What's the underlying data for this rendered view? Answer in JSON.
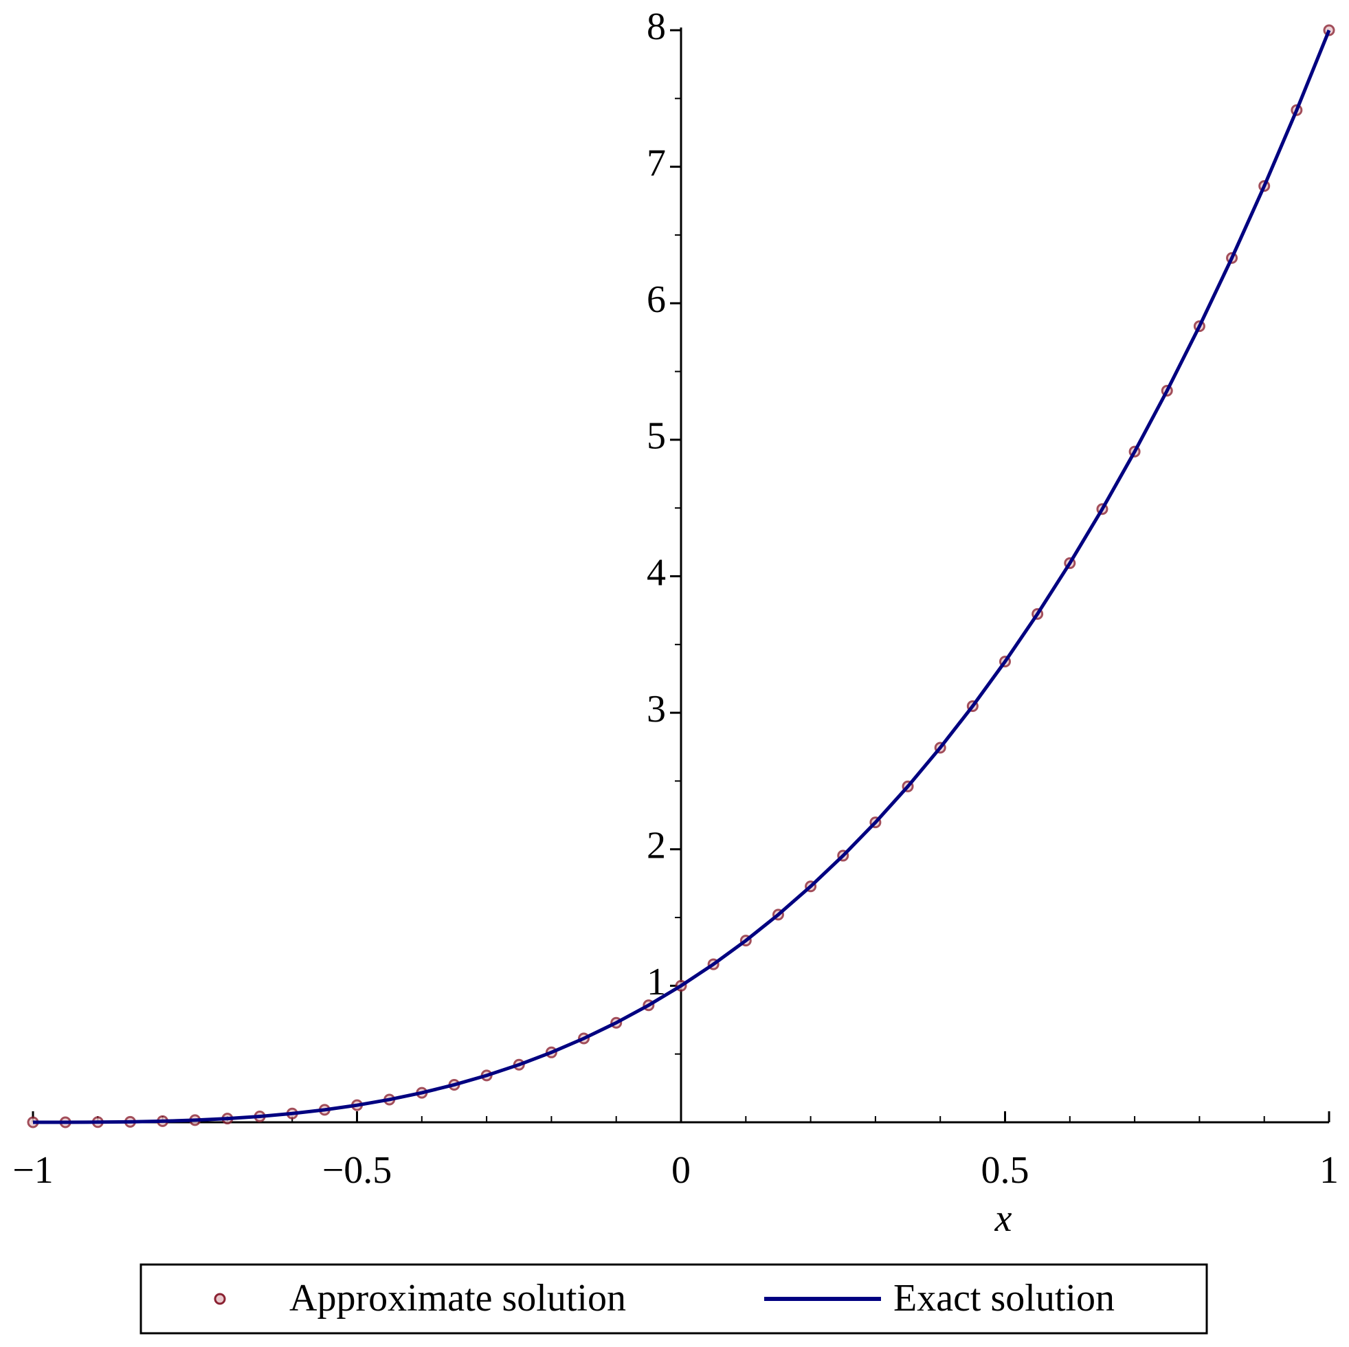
{
  "chart_data": {
    "type": "line",
    "x_label": "x",
    "xlim": [
      -1,
      1
    ],
    "ylim": [
      0,
      8
    ],
    "xticks": [
      {
        "value": -1,
        "label": "−1"
      },
      {
        "value": -0.5,
        "label": "−0.5"
      },
      0,
      0.5,
      1
    ],
    "yticks": [
      1,
      2,
      3,
      4,
      5,
      6,
      7,
      8
    ],
    "xminor_ticks": [
      -0.9,
      -0.8,
      -0.7,
      -0.6,
      -0.4,
      -0.3,
      -0.2,
      -0.1,
      0.1,
      0.2,
      0.3,
      0.4,
      0.6,
      0.7,
      0.8,
      0.9
    ],
    "yminor_ticks": [
      0.5,
      1.5,
      2.5,
      3.5,
      4.5,
      5.5,
      6.5,
      7.5
    ],
    "legend": "bottom",
    "x": [
      -1,
      -0.95,
      -0.9,
      -0.85,
      -0.8,
      -0.75,
      -0.7,
      -0.65,
      -0.6,
      -0.55,
      -0.5,
      -0.45,
      -0.4,
      -0.35,
      -0.3,
      -0.25,
      -0.2,
      -0.15,
      -0.1,
      -0.05,
      0,
      0.05,
      0.1,
      0.15,
      0.2,
      0.25,
      0.3,
      0.35,
      0.4,
      0.45,
      0.5,
      0.55,
      0.6,
      0.65,
      0.7,
      0.75,
      0.8,
      0.85,
      0.9,
      0.95,
      1
    ],
    "series": [
      {
        "name": "Approximate solution",
        "color": "#8b2232",
        "mode": "markers",
        "values": [
          0,
          0.000125,
          0.001,
          0.003375,
          0.008,
          0.015625,
          0.027,
          0.042875,
          0.064,
          0.091125,
          0.125,
          0.166375,
          0.216,
          0.274625,
          0.343,
          0.421875,
          0.512,
          0.614125,
          0.729,
          0.857375,
          1,
          1.157625,
          1.331,
          1.520875,
          1.728,
          1.953125,
          2.197,
          2.460375,
          2.744,
          3.048625,
          3.375,
          3.723875,
          4.096,
          4.492125,
          4.913,
          5.359375,
          5.832,
          6.331625,
          6.859,
          7.414875,
          8
        ]
      },
      {
        "name": "Exact solution",
        "color": "#000080",
        "mode": "line",
        "values": [
          0,
          0.000125,
          0.001,
          0.003375,
          0.008,
          0.015625,
          0.027,
          0.042875,
          0.064,
          0.091125,
          0.125,
          0.166375,
          0.216,
          0.274625,
          0.343,
          0.421875,
          0.512,
          0.614125,
          0.729,
          0.857375,
          1,
          1.157625,
          1.331,
          1.520875,
          1.728,
          1.953125,
          2.197,
          2.460375,
          2.744,
          3.048625,
          3.375,
          3.723875,
          4.096,
          4.492125,
          4.913,
          5.359375,
          5.832,
          6.331625,
          6.859,
          7.414875,
          8
        ]
      }
    ]
  }
}
